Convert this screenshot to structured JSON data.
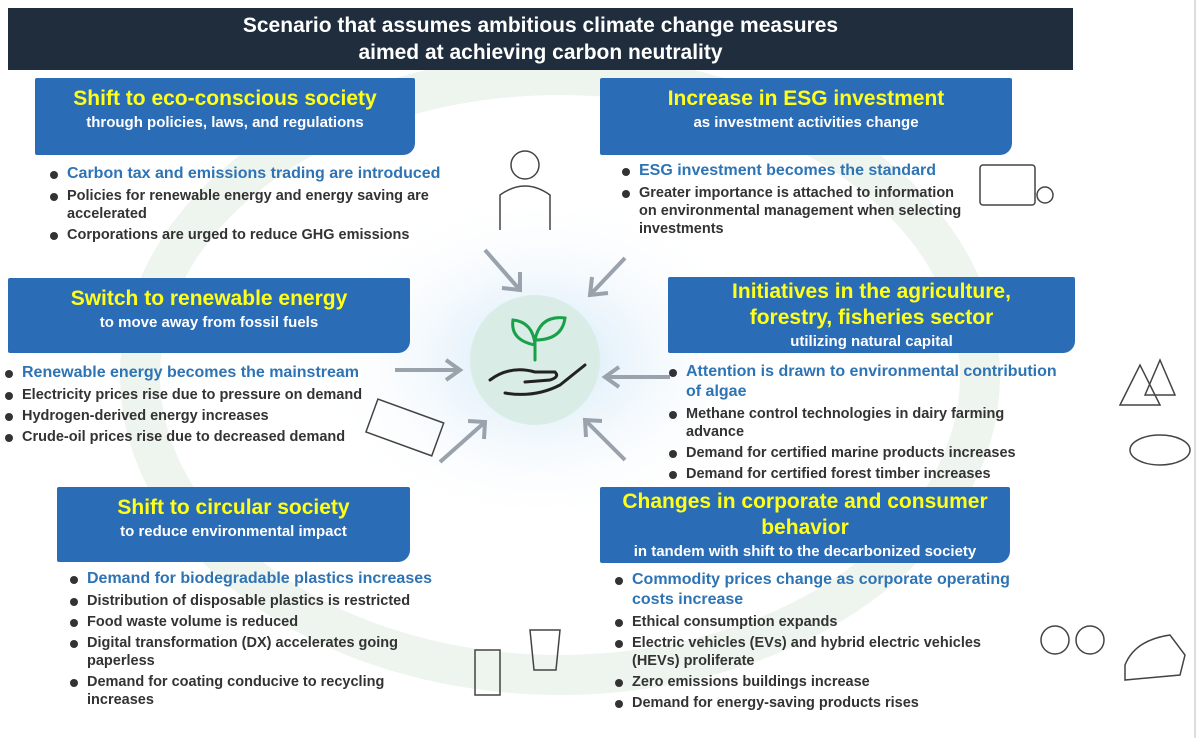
{
  "header": {
    "title_lines": [
      "Scenario that assumes ambitious climate change measures",
      "aimed at achieving carbon neutrality"
    ]
  },
  "sections": [
    {
      "title_lines": [
        "Shift to eco-conscious society"
      ],
      "subtitle": "through policies, laws, and regulations",
      "bullets": [
        "Carbon tax and emissions trading are introduced",
        "Policies for renewable energy and energy saving are accelerated",
        "Corporations are urged to reduce GHG emissions"
      ]
    },
    {
      "title_lines": [
        "Increase in ESG investment"
      ],
      "subtitle": "as investment activities change",
      "bullets": [
        "ESG investment becomes the standard",
        "Greater importance is attached to information on environmental management when selecting investments"
      ]
    },
    {
      "title_lines": [
        "Switch to renewable energy"
      ],
      "subtitle": "to move away from fossil fuels",
      "bullets": [
        "Renewable energy becomes the mainstream",
        "Electricity prices rise due to pressure on demand",
        "Hydrogen-derived energy increases",
        "Crude-oil prices rise due to decreased demand"
      ]
    },
    {
      "title_lines": [
        "Initiatives in the agriculture,",
        "forestry, fisheries sector"
      ],
      "subtitle": "utilizing natural capital",
      "bullets": [
        "Attention is drawn to environmental contribution of algae",
        "Methane control technologies in dairy farming advance",
        "Demand for certified marine products increases",
        "Demand for certified forest timber increases"
      ]
    },
    {
      "title_lines": [
        "Shift to circular society"
      ],
      "subtitle": "to reduce environmental impact",
      "bullets": [
        "Demand for biodegradable plastics increases",
        "Distribution of disposable plastics is restricted",
        "Food waste volume is reduced",
        "Digital transformation (DX) accelerates going paperless",
        "Demand for coating conducive to recycling increases"
      ]
    },
    {
      "title_lines": [
        "Changes in corporate and consumer",
        "behavior"
      ],
      "subtitle": "in tandem with shift to the decarbonized society",
      "bullets": [
        "Commodity prices change as corporate operating costs increase",
        "Ethical consumption expands",
        "Electric vehicles (EVs) and hybrid electric vehicles (HEVs) proliferate",
        "Zero emissions buildings increase",
        "Demand for energy-saving products rises"
      ]
    }
  ]
}
